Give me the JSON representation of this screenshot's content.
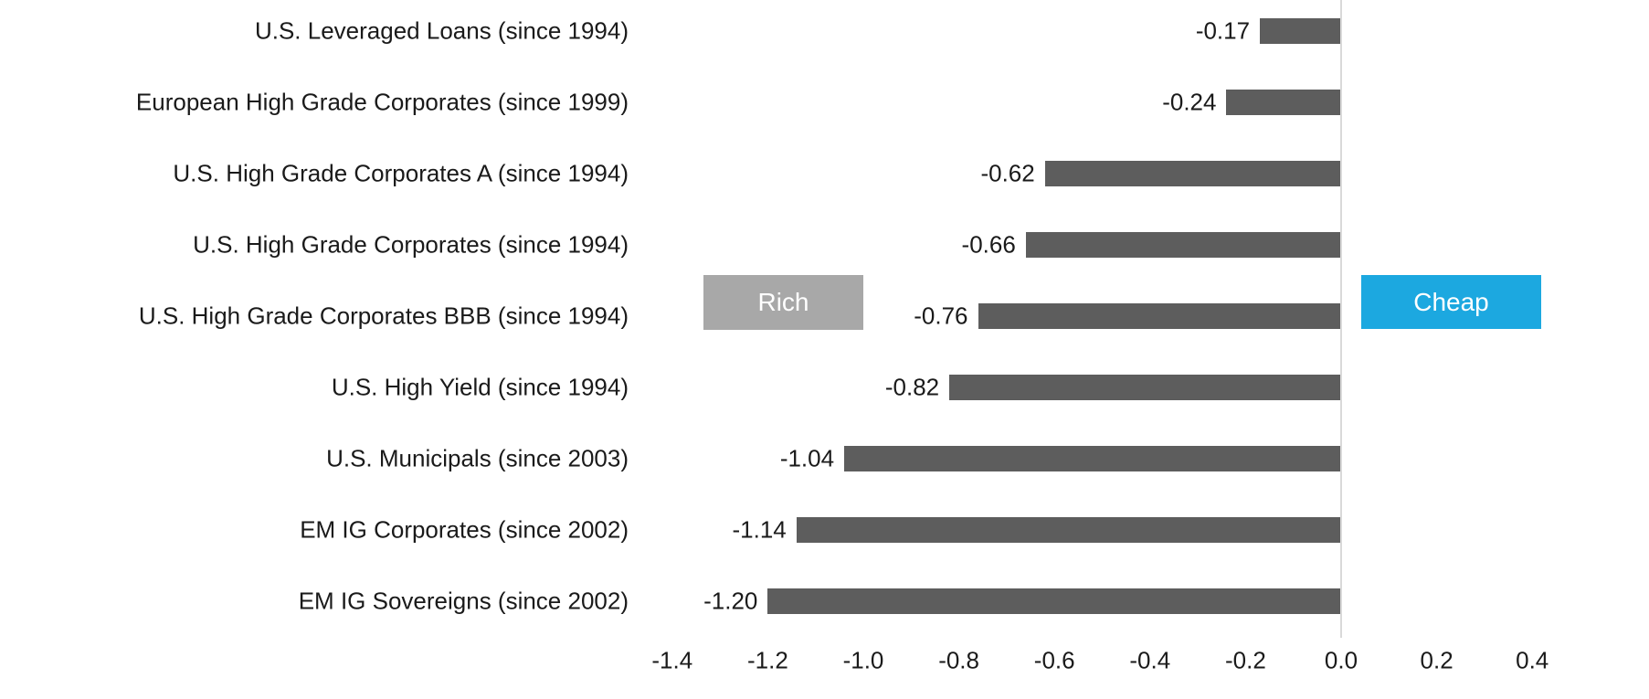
{
  "chart_data": {
    "type": "bar",
    "orientation": "horizontal",
    "title": "",
    "xlabel": "",
    "ylabel": "",
    "categories": [
      "U.S. Leveraged Loans (since 1994)",
      "European High Grade Corporates (since 1999)",
      "U.S. High Grade Corporates A (since 1994)",
      "U.S. High Grade Corporates (since 1994)",
      "U.S. High Grade Corporates BBB  (since 1994)",
      "U.S. High Yield (since 1994)",
      "U.S. Municipals (since 2003)",
      "EM IG Corporates (since 2002)",
      "EM IG Sovereigns (since 2002)"
    ],
    "values": [
      -0.17,
      -0.24,
      -0.62,
      -0.66,
      -0.76,
      -0.82,
      -1.04,
      -1.14,
      -1.2
    ],
    "value_labels": [
      "-0.17",
      "-0.24",
      "-0.62",
      "-0.66",
      "-0.76",
      "-0.82",
      "-1.04",
      "-1.14",
      "-1.20"
    ],
    "x_ticks": [
      "-1.4",
      "-1.2",
      "-1.0",
      "-0.8",
      "-0.6",
      "-0.4",
      "-0.2",
      "0.0",
      "0.2",
      "0.4"
    ],
    "x_tick_values": [
      -1.4,
      -1.2,
      -1.0,
      -0.8,
      -0.6,
      -0.4,
      -0.2,
      0.0,
      0.2,
      0.4
    ],
    "xlim": [
      -1.4,
      0.4
    ],
    "grid": "zero-line-only",
    "legend": "none",
    "bar_color": "#5d5d5d",
    "zero_line_color": "#d9d9d9",
    "text_color": "#1a1a1a",
    "annotations": [
      {
        "label": "Rich",
        "fill": "#a8a8a8",
        "text_color": "#ffffff",
        "position": "left-of-bars"
      },
      {
        "label": "Cheap",
        "fill": "#1ca8e0",
        "text_color": "#ffffff",
        "position": "right-of-zero-line"
      }
    ]
  }
}
